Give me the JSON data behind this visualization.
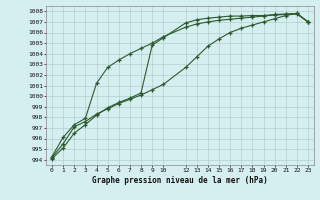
{
  "title": "Graphe pression niveau de la mer (hPa)",
  "bg_color": "#d5eef0",
  "grid_color": "#b0d0d0",
  "line_color": "#2d5a2d",
  "xlim": [
    -0.5,
    23.5
  ],
  "ylim": [
    993.5,
    1008.5
  ],
  "yticks": [
    994,
    995,
    996,
    997,
    998,
    999,
    1000,
    1001,
    1002,
    1003,
    1004,
    1005,
    1006,
    1007,
    1008
  ],
  "xticks": [
    0,
    1,
    2,
    3,
    4,
    5,
    6,
    7,
    8,
    9,
    10,
    12,
    13,
    14,
    15,
    16,
    17,
    18,
    19,
    20,
    21,
    22,
    23
  ],
  "xtick_labels": [
    "0",
    "1",
    "2",
    "3",
    "4",
    "5",
    "6",
    "7",
    "8",
    "9",
    "10",
    "12",
    "13",
    "14",
    "15",
    "16",
    "17",
    "18",
    "19",
    "20",
    "21",
    "22",
    "23"
  ],
  "line1_x": [
    0,
    1,
    2,
    3,
    4,
    5,
    6,
    7,
    8,
    9,
    10,
    12,
    13,
    14,
    15,
    16,
    17,
    18,
    19,
    20,
    21,
    22,
    23
  ],
  "line1_y": [
    994.1,
    995.1,
    996.5,
    997.3,
    998.2,
    998.9,
    999.4,
    999.8,
    1000.3,
    1004.8,
    1005.5,
    1006.9,
    1007.2,
    1007.35,
    1007.45,
    1007.55,
    1007.55,
    1007.6,
    1007.6,
    1007.7,
    1007.75,
    1007.8,
    1007.0
  ],
  "line2_x": [
    0,
    1,
    2,
    3,
    4,
    5,
    6,
    7,
    8,
    9,
    10,
    12,
    13,
    14,
    15,
    16,
    17,
    18,
    19,
    20,
    21,
    22,
    23
  ],
  "line2_y": [
    994.3,
    996.1,
    997.3,
    997.9,
    1001.2,
    1002.7,
    1003.4,
    1004.0,
    1004.5,
    1005.0,
    1005.6,
    1006.5,
    1006.8,
    1007.0,
    1007.15,
    1007.25,
    1007.35,
    1007.45,
    1007.55,
    1007.65,
    1007.7,
    1007.75,
    1007.0
  ],
  "line3_x": [
    0,
    1,
    2,
    3,
    4,
    5,
    6,
    7,
    8,
    9,
    10,
    12,
    13,
    14,
    15,
    16,
    17,
    18,
    19,
    20,
    21,
    22,
    23
  ],
  "line3_y": [
    994.2,
    995.5,
    997.1,
    997.6,
    998.3,
    998.8,
    999.3,
    999.7,
    1000.1,
    1000.6,
    1001.1,
    1002.7,
    1003.7,
    1004.7,
    1005.4,
    1006.0,
    1006.4,
    1006.7,
    1007.0,
    1007.3,
    1007.6,
    1007.8,
    1007.0
  ]
}
